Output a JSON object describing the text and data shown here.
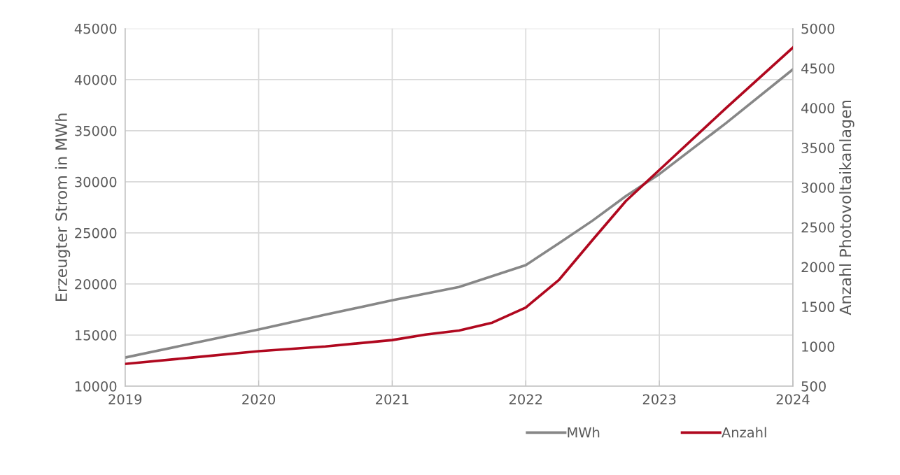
{
  "chart_data": {
    "type": "line",
    "xlim": [
      2019,
      2024
    ],
    "xticks": [
      2019,
      2020,
      2021,
      2022,
      2023,
      2024
    ],
    "ylabel": "Erzeugter Strom in MWh",
    "y2label": "Anzahl Photovoltaikanlagen",
    "ylim": [
      10000,
      45000
    ],
    "yticks": [
      10000,
      15000,
      20000,
      25000,
      30000,
      35000,
      40000,
      45000
    ],
    "y2lim": [
      500,
      5000
    ],
    "y2ticks": [
      500,
      1000,
      1500,
      2000,
      2500,
      3000,
      3500,
      4000,
      4500,
      5000
    ],
    "grid": true,
    "legend": "bottom right",
    "line_style": "solid",
    "series": [
      {
        "name": "MWh",
        "color": "#878787",
        "x": [
          2019,
          2019.5,
          2020,
          2020.5,
          2021,
          2021.5,
          2022,
          2022.25,
          2022.5,
          2022.75,
          2023,
          2023.5,
          2024
        ],
        "values": [
          12800,
          14180,
          15550,
          17000,
          18400,
          19700,
          21850,
          24000,
          26200,
          28600,
          30750,
          35750,
          41000
        ]
      },
      {
        "name": "Anzahl",
        "color": "#b0081f",
        "axis": "y2",
        "x": [
          2019,
          2019.5,
          2020,
          2020.5,
          2021,
          2021.25,
          2021.5,
          2021.75,
          2022,
          2022.25,
          2022.5,
          2022.75,
          2023,
          2023.5,
          2024
        ],
        "values": [
          780,
          860,
          940,
          1000,
          1080,
          1150,
          1200,
          1300,
          1490,
          1840,
          2340,
          2830,
          3220,
          4000,
          4760
        ]
      }
    ]
  }
}
